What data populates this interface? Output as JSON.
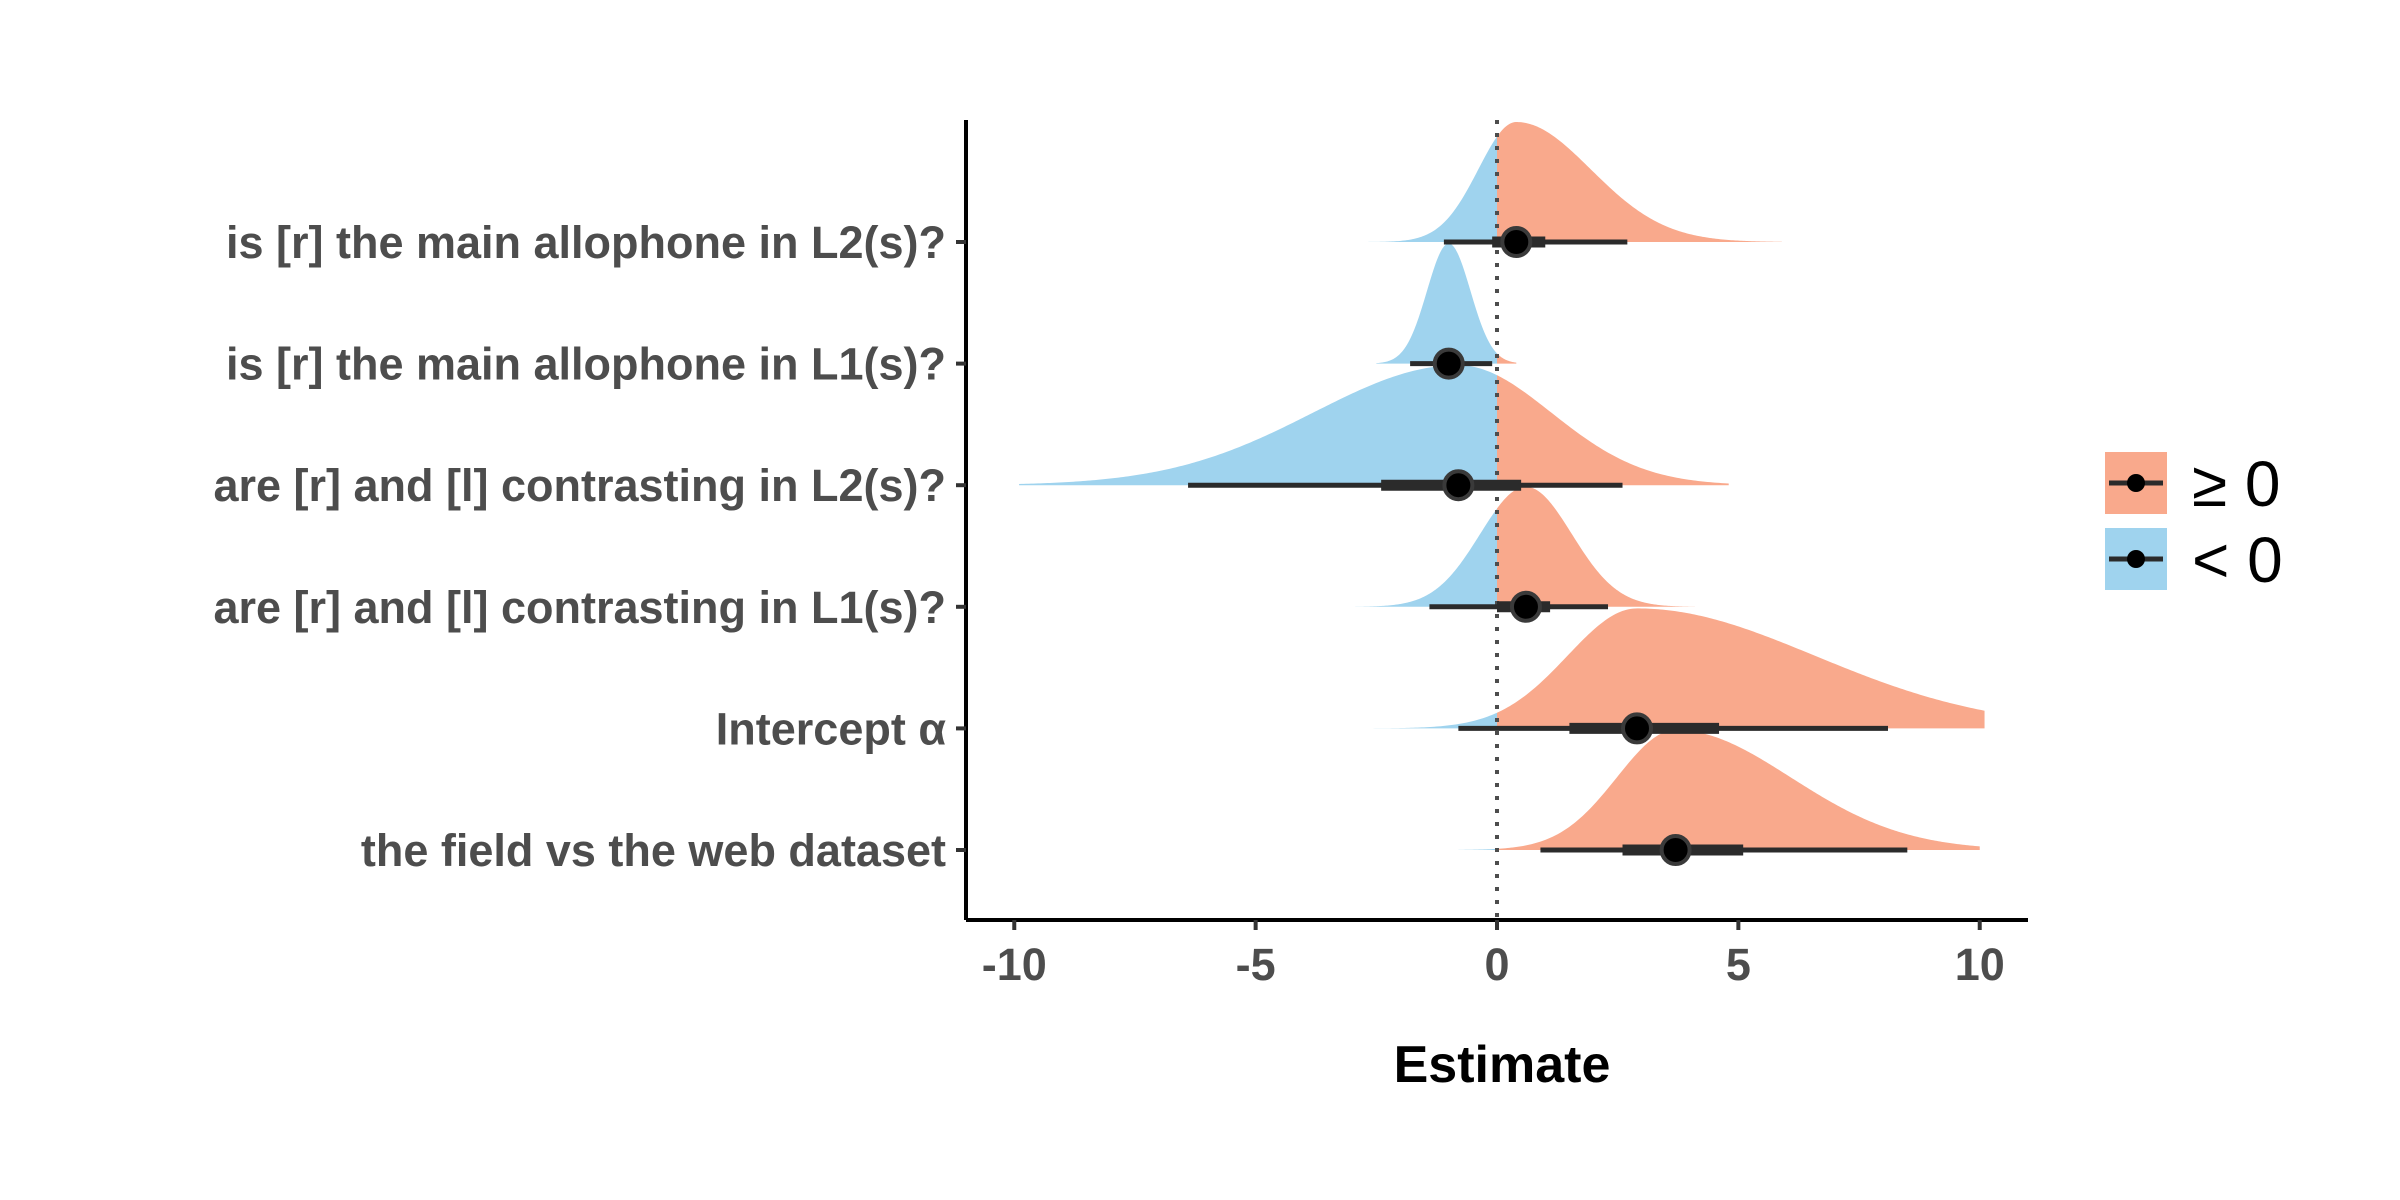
{
  "chart_data": {
    "type": "halfeye",
    "xlabel": "Estimate",
    "ylabel": "",
    "xlim": [
      -11,
      11
    ],
    "x_ticks": [
      -10,
      -5,
      0,
      5,
      10
    ],
    "x_tick_labels": [
      "-10",
      "-5",
      "0",
      "5",
      "10"
    ],
    "reference_line_x": 0,
    "grid": false,
    "legend_position": "right",
    "legend": [
      {
        "label": "≥ 0",
        "color": "#f9a98c"
      },
      {
        "label": "< 0",
        "color": "#9fd3ee"
      }
    ],
    "series": [
      {
        "label": "is [r] the main allophone in L2(s)?",
        "median": 0.4,
        "inner": [
          -0.1,
          1.0
        ],
        "outer": [
          -1.1,
          2.7
        ],
        "sd": 1.1,
        "skew": 1.4,
        "range": [
          -3.1,
          5.9
        ]
      },
      {
        "label": "is [r] the main allophone in L1(s)?",
        "median": -1.0,
        "inner": [
          -1.3,
          -0.7
        ],
        "outer": [
          -1.8,
          -0.1
        ],
        "sd": 0.45,
        "skew": 1.0,
        "range": [
          -2.5,
          0.4
        ]
      },
      {
        "label": "are [r] and [l] contrasting in L2(s)?",
        "median": -0.8,
        "inner": [
          -2.4,
          0.5
        ],
        "outer": [
          -6.4,
          2.6
        ],
        "sd": 2.4,
        "skew": 0.8,
        "range": [
          -9.9,
          4.8
        ]
      },
      {
        "label": "are [r] and [l] contrasting in L1(s)?",
        "median": 0.6,
        "inner": [
          0.0,
          1.1
        ],
        "outer": [
          -1.4,
          2.3
        ],
        "sd": 0.95,
        "skew": 1.0,
        "range": [
          -3.4,
          4.1
        ]
      },
      {
        "label": "Intercept α",
        "median": 2.9,
        "inner": [
          1.5,
          4.6
        ],
        "outer": [
          -0.8,
          8.1
        ],
        "sd": 2.3,
        "skew": 1.6,
        "range": [
          -3.1,
          10.1
        ]
      },
      {
        "label": "the field vs the web dataset",
        "median": 3.7,
        "inner": [
          2.6,
          5.1
        ],
        "outer": [
          0.9,
          8.5
        ],
        "sd": 1.7,
        "skew": 1.4,
        "range": [
          -0.8,
          10.0
        ]
      }
    ]
  }
}
